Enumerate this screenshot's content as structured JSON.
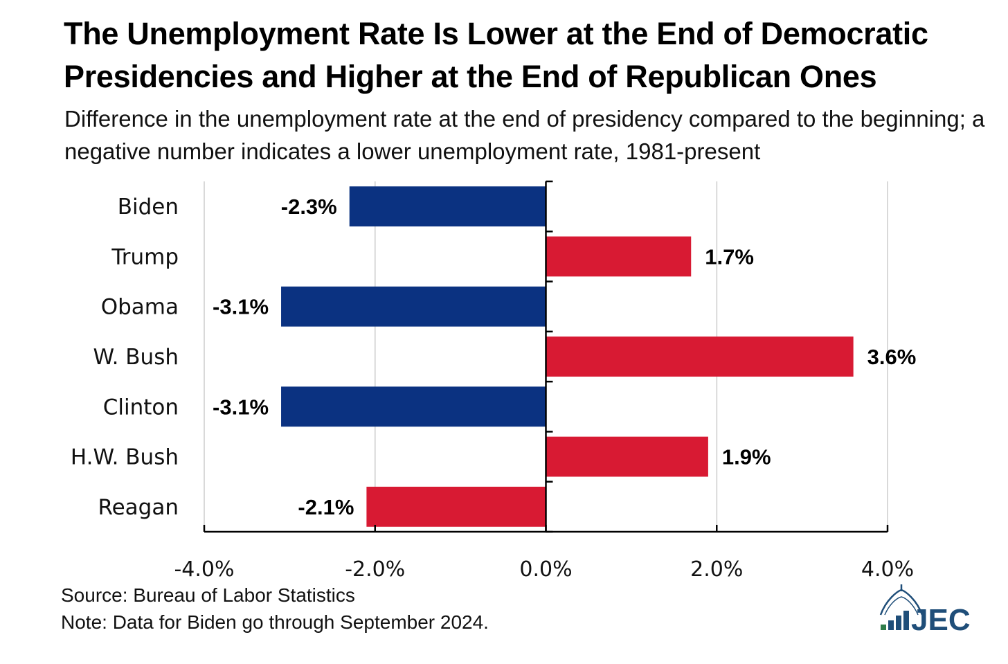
{
  "title": "The Unemployment Rate Is Lower at the End of Democratic Presidencies and Higher at the End of Republican Ones",
  "subtitle": "Difference in the unemployment rate at the end of presidency compared to the beginning; a negative number indicates a lower unemployment rate, 1981-present",
  "source": "Source: Bureau of Labor Statistics",
  "note": "Note: Data for Biden go through September 2024.",
  "logo_text": "JEC",
  "colors": {
    "democrat": "#0b3281",
    "republican": "#d81a33",
    "grid": "#d9d9d9",
    "axis": "#000000"
  },
  "chart_data": {
    "type": "bar",
    "orientation": "horizontal",
    "categories": [
      "Biden",
      "Trump",
      "Obama",
      "W. Bush",
      "Clinton",
      "H.W. Bush",
      "Reagan"
    ],
    "values": [
      -2.3,
      1.7,
      -3.1,
      3.6,
      -3.1,
      1.9,
      -2.1
    ],
    "data_labels": [
      "-2.3%",
      "1.7%",
      "-3.1%",
      "3.6%",
      "-3.1%",
      "1.9%",
      "-2.1%"
    ],
    "party": [
      "democrat",
      "republican",
      "democrat",
      "republican",
      "democrat",
      "republican",
      "republican"
    ],
    "xlim": [
      -4.0,
      4.0
    ],
    "xticks": [
      -4.0,
      -2.0,
      0.0,
      2.0,
      4.0
    ],
    "xtick_labels": [
      "-4.0%",
      "-2.0%",
      "0.0%",
      "2.0%",
      "4.0%"
    ],
    "grid": true,
    "legend": "none"
  }
}
